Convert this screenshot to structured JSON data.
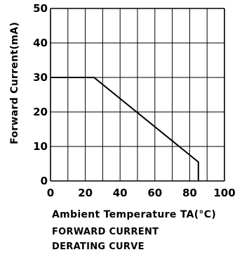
{
  "chart_data": {
    "type": "line",
    "x_ticks": [
      "0",
      "20",
      "40",
      "60",
      "80",
      "100"
    ],
    "y_ticks": [
      "0",
      "10",
      "20",
      "30",
      "40",
      "50"
    ],
    "xlim": [
      0,
      100
    ],
    "ylim": [
      0,
      50
    ],
    "grid": true,
    "x_minor_step": 10,
    "series": [
      {
        "points": [
          [
            0,
            30
          ],
          [
            25,
            30
          ],
          [
            85,
            5.5
          ],
          [
            85,
            0
          ]
        ]
      }
    ],
    "xlabel": "Ambient Temperature TA(°C)",
    "ylabel": "Forward Current(mA)",
    "caption_lines": [
      "FORWARD CURRENT",
      "DERATING CURVE"
    ]
  }
}
